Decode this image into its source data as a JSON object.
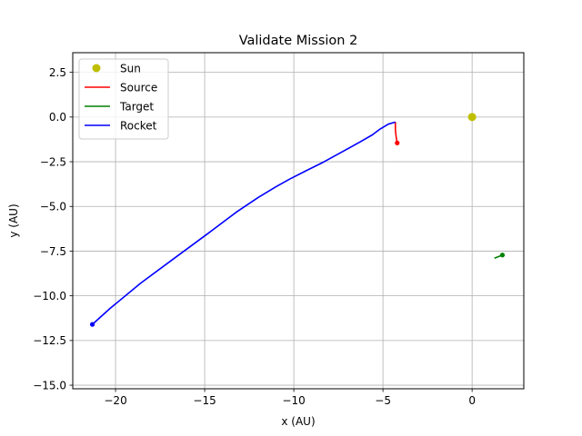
{
  "chart_data": {
    "type": "line",
    "title": "Validate Mission 2",
    "xlabel": "x (AU)",
    "ylabel": "y (AU)",
    "xlim": [
      -22.4,
      2.9
    ],
    "ylim": [
      -15.2,
      3.6
    ],
    "xticks": [
      -20,
      -15,
      -10,
      -5,
      0
    ],
    "yticks": [
      2.5,
      0.0,
      -2.5,
      -5.0,
      -7.5,
      -10.0,
      -12.5,
      -15.0
    ],
    "xtick_labels": [
      "−20",
      "−15",
      "−10",
      "−5",
      "0"
    ],
    "ytick_labels": [
      "2.5",
      "0.0",
      "−2.5",
      "−5.0",
      "−7.5",
      "−10.0",
      "−12.5",
      "−15.0"
    ],
    "grid": true,
    "legend_position": "top-left",
    "series": [
      {
        "name": "Sun",
        "kind": "marker",
        "color": "#bfbf00",
        "points": [
          [
            0.0,
            0.0
          ]
        ]
      },
      {
        "name": "Source",
        "kind": "line",
        "color": "#ff0000",
        "points": [
          [
            -4.3,
            -0.28
          ],
          [
            -4.3,
            -0.7
          ],
          [
            -4.26,
            -1.1
          ],
          [
            -4.2,
            -1.45
          ]
        ],
        "end_marker": [
          -4.2,
          -1.45
        ]
      },
      {
        "name": "Target",
        "kind": "line",
        "color": "#008000",
        "points": [
          [
            1.25,
            -7.9
          ],
          [
            1.45,
            -7.82
          ],
          [
            1.7,
            -7.72
          ]
        ],
        "end_marker": [
          1.7,
          -7.72
        ]
      },
      {
        "name": "Rocket",
        "kind": "line",
        "color": "#0000ff",
        "points": [
          [
            -4.3,
            -0.28
          ],
          [
            -4.7,
            -0.4
          ],
          [
            -5.2,
            -0.7
          ],
          [
            -5.6,
            -1.0
          ],
          [
            -6.3,
            -1.4
          ],
          [
            -7.2,
            -1.9
          ],
          [
            -8.3,
            -2.5
          ],
          [
            -9.3,
            -3.0
          ],
          [
            -10.2,
            -3.45
          ],
          [
            -11.0,
            -3.9
          ],
          [
            -12.0,
            -4.5
          ],
          [
            -13.2,
            -5.3
          ],
          [
            -14.8,
            -6.5
          ],
          [
            -16.7,
            -7.9
          ],
          [
            -18.6,
            -9.3
          ],
          [
            -20.3,
            -10.7
          ],
          [
            -21.3,
            -11.6
          ]
        ],
        "end_marker": [
          -21.3,
          -11.6
        ]
      }
    ]
  }
}
